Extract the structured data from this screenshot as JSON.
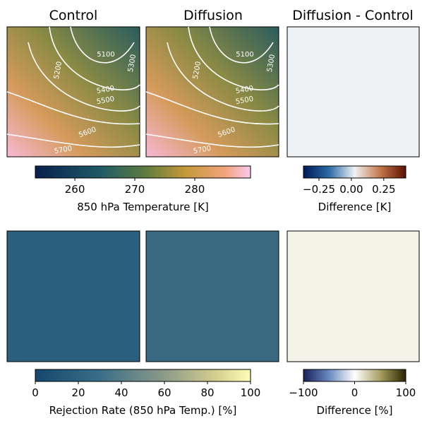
{
  "panels": {
    "top_row": [
      "Control",
      "Diffusion",
      "Diffusion - Control"
    ],
    "contour_labels": [
      "5100",
      "5200",
      "5300",
      "5400",
      "5500",
      "5600",
      "5700"
    ]
  },
  "colorbars": [
    {
      "label": "850 hPa Temperature [K]",
      "lim": [
        253.4,
        289.3
      ],
      "ticks": [
        260,
        270,
        280
      ]
    },
    {
      "label": "Difference [K]",
      "lim": [
        -0.37,
        0.42
      ],
      "ticks": [
        {
          "value": -0.25,
          "label": "−0.25"
        },
        {
          "value": 0,
          "label": "0.00"
        },
        0.25
      ]
    },
    {
      "label": "Rejection Rate (850 hPa Temp.) [%]",
      "lim": [
        0,
        100
      ],
      "ticks": [
        0,
        20,
        40,
        60,
        80,
        100
      ]
    },
    {
      "label": "Difference [%]",
      "lim": [
        -100,
        100
      ],
      "ticks": [
        {
          "value": -100,
          "label": "−100"
        },
        0,
        100
      ]
    }
  ]
}
